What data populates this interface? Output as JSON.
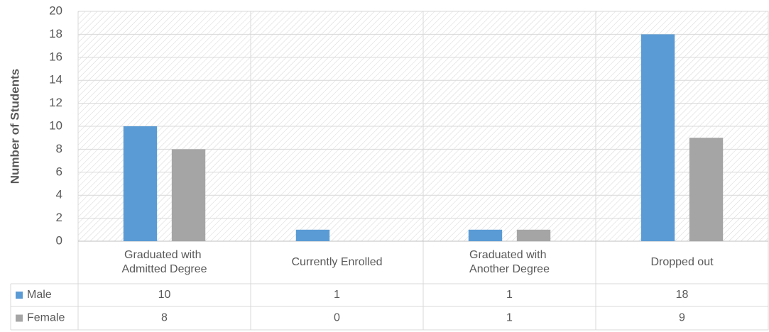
{
  "chart_data": {
    "type": "bar",
    "y_label": "Number of Students",
    "categories": [
      "Graduated with Admitted Degree",
      "Currently Enrolled",
      "Graduated with Another Degree",
      "Dropped out"
    ],
    "series": [
      {
        "name": "Male",
        "color": "#5b9bd5",
        "values": [
          10,
          1,
          1,
          18
        ]
      },
      {
        "name": "Female",
        "color": "#a5a5a5",
        "values": [
          8,
          0,
          1,
          9
        ]
      }
    ],
    "ylim": [
      0,
      20
    ],
    "yticks": [
      0,
      2,
      4,
      6,
      8,
      10,
      12,
      14,
      16,
      18,
      20
    ],
    "grid": true
  }
}
